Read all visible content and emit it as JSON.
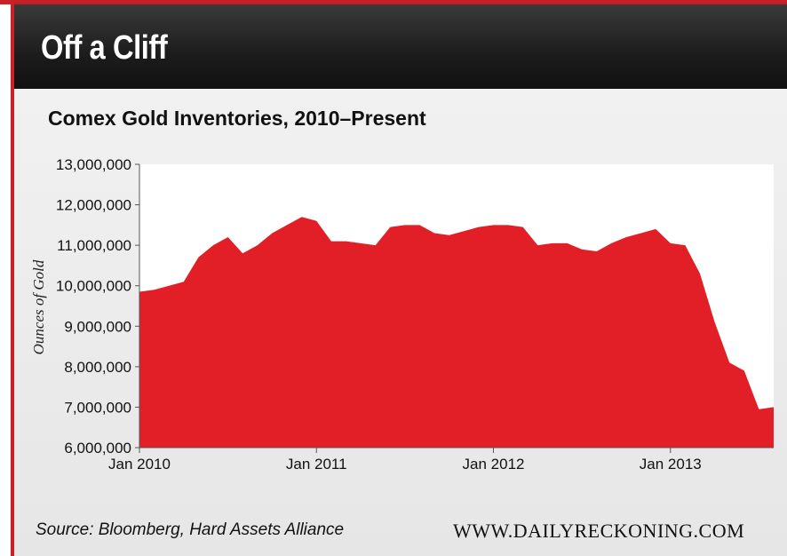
{
  "banner": {
    "title": "Off a Cliff"
  },
  "footer": {
    "source": "Source: Bloomberg, Hard Assets Alliance",
    "site": "WWW.DAILYRECKONING.COM"
  },
  "colors": {
    "fill": "#e21f26",
    "banner": "#1c1c1c",
    "accent": "#c9202a"
  },
  "chart_data": {
    "type": "area",
    "title": "Comex Gold Inventories, 2010–Present",
    "xlabel": "",
    "ylabel": "Ounces of Gold",
    "ylim": [
      6000000,
      13000000
    ],
    "yticks": [
      6000000,
      7000000,
      8000000,
      9000000,
      10000000,
      11000000,
      12000000,
      13000000
    ],
    "ytick_labels": [
      "6,000,000",
      "7,000,000",
      "8,000,000",
      "9,000,000",
      "10,000,000",
      "11,000,000",
      "12,000,000",
      "13,000,000"
    ],
    "xlim": [
      "2010-01",
      "2013-08"
    ],
    "xticks": [
      "2010-01",
      "2011-01",
      "2012-01",
      "2013-01"
    ],
    "xtick_labels": [
      "Jan 2010",
      "Jan 2011",
      "Jan 2012",
      "Jan 2013"
    ],
    "grid": false,
    "series": [
      {
        "x": [
          "2010-01",
          "2010-02",
          "2010-03",
          "2010-04",
          "2010-05",
          "2010-06",
          "2010-07",
          "2010-08",
          "2010-09",
          "2010-10",
          "2010-11",
          "2010-12",
          "2011-01",
          "2011-02",
          "2011-03",
          "2011-04",
          "2011-05",
          "2011-06",
          "2011-07",
          "2011-08",
          "2011-09",
          "2011-10",
          "2011-11",
          "2011-12",
          "2012-01",
          "2012-02",
          "2012-03",
          "2012-04",
          "2012-05",
          "2012-06",
          "2012-07",
          "2012-08",
          "2012-09",
          "2012-10",
          "2012-11",
          "2012-12",
          "2013-01",
          "2013-02",
          "2013-03",
          "2013-04",
          "2013-05",
          "2013-06",
          "2013-07",
          "2013-08"
        ],
        "y": [
          9850000,
          9900000,
          10000000,
          10100000,
          10700000,
          11000000,
          11200000,
          10800000,
          11000000,
          11300000,
          11500000,
          11700000,
          11600000,
          11100000,
          11100000,
          11050000,
          11000000,
          11450000,
          11500000,
          11500000,
          11300000,
          11250000,
          11350000,
          11450000,
          11500000,
          11500000,
          11450000,
          11000000,
          11050000,
          11050000,
          10900000,
          10850000,
          11050000,
          11200000,
          11300000,
          11400000,
          11050000,
          11000000,
          10300000,
          9100000,
          8100000,
          7900000,
          6950000,
          7000000
        ]
      }
    ]
  }
}
